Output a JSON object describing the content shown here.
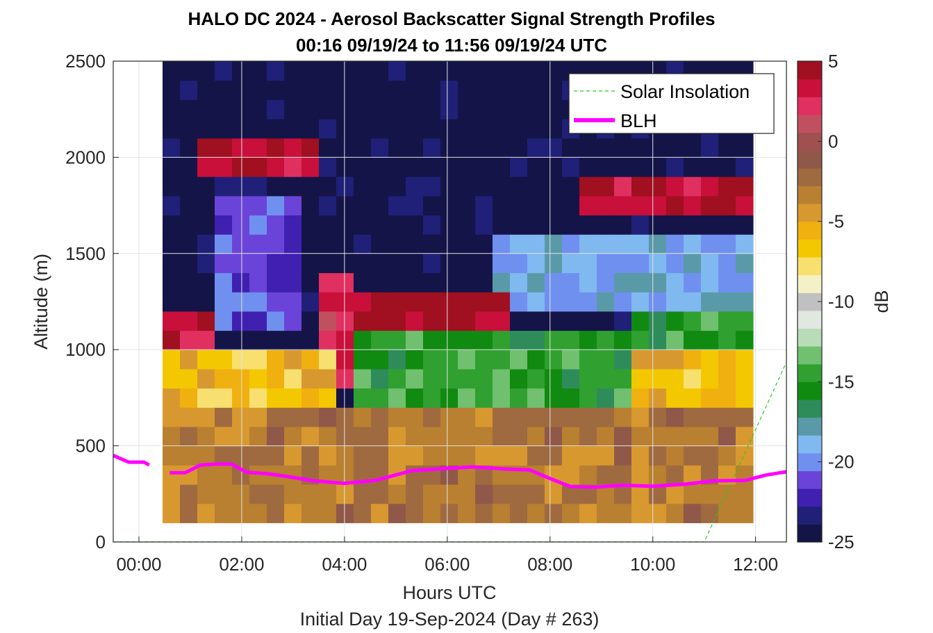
{
  "chart_data": {
    "type": "heatmap",
    "title": [
      "HALO DC 2024 - Aerosol Backscatter Signal Strength Profiles",
      "00:16 09/19/24 to 11:56 09/19/24  UTC"
    ],
    "xlabel": "Hours UTC",
    "xlabel2": "Initial Day 19-Sep-2024 (Day # 263)",
    "ylabel": "Altitude (m)",
    "xlim_hours": [
      -0.5,
      12.6
    ],
    "ylim": [
      0,
      2500
    ],
    "x_ticks": [
      {
        "value": 0,
        "label": "00:00"
      },
      {
        "value": 2,
        "label": "02:00"
      },
      {
        "value": 4,
        "label": "04:00"
      },
      {
        "value": 6,
        "label": "06:00"
      },
      {
        "value": 8,
        "label": "08:00"
      },
      {
        "value": 10,
        "label": "10:00"
      },
      {
        "value": 12,
        "label": "12:00"
      }
    ],
    "y_ticks": [
      {
        "value": 0,
        "label": "0"
      },
      {
        "value": 500,
        "label": "500"
      },
      {
        "value": 1000,
        "label": "1000"
      },
      {
        "value": 1500,
        "label": "1500"
      },
      {
        "value": 2000,
        "label": "2000"
      },
      {
        "value": 2500,
        "label": "2500"
      }
    ],
    "grid": true,
    "colorbar": {
      "label": "dB",
      "range": [
        -25,
        5
      ],
      "ticks": [
        {
          "value": 5,
          "label": "5"
        },
        {
          "value": 0,
          "label": "0"
        },
        {
          "value": -5,
          "label": "-5"
        },
        {
          "value": -10,
          "label": "-10"
        },
        {
          "value": -15,
          "label": "-15"
        },
        {
          "value": -20,
          "label": "-20"
        },
        {
          "value": -25,
          "label": "-25"
        }
      ],
      "colors": [
        "#141448",
        "#202078",
        "#4020b0",
        "#6a44d8",
        "#7090f0",
        "#80b8f0",
        "#5a9aa8",
        "#2e8c5a",
        "#108a10",
        "#30a030",
        "#70c070",
        "#b8dcb8",
        "#e0e8e0",
        "#c0c0c0",
        "#f4f0c8",
        "#f8e070",
        "#f4c800",
        "#f0b010",
        "#d89830",
        "#b88030",
        "#a06a40",
        "#905848",
        "#a05050",
        "#c05060",
        "#e03060",
        "#c8103a",
        "#a01020"
      ]
    },
    "legend": {
      "placement": "top-right",
      "entries": [
        {
          "name": "Solar Insolation",
          "color": "#22cc22",
          "style": "dashed"
        },
        {
          "name": "BLH",
          "color": "#ff00ff",
          "style": "solid"
        }
      ]
    },
    "heatmap_extent": {
      "x_start": 0.46,
      "x_end": 11.95,
      "y_start": 100,
      "y_end": 2500
    },
    "heatmap_columns": 34,
    "heatmap_rows": 24,
    "heatmap_regions": [
      {
        "x0": 0.46,
        "x1": 11.95,
        "y0": 100,
        "y1": 150,
        "db": -7
      },
      {
        "x0": 0.46,
        "x1": 11.95,
        "y0": 150,
        "y1": 700,
        "db": -3
      },
      {
        "x0": 0.46,
        "x1": 3.8,
        "y0": 700,
        "y1": 1050,
        "db": -6
      },
      {
        "x0": 0.46,
        "x1": 1.5,
        "y0": 850,
        "y1": 1250,
        "db": 3
      },
      {
        "x0": 3.4,
        "x1": 4.3,
        "y0": 800,
        "y1": 1450,
        "db": 3
      },
      {
        "x0": 4.3,
        "x1": 7.1,
        "y0": 1100,
        "y1": 1350,
        "db": 4
      },
      {
        "x0": 4.3,
        "x1": 9.5,
        "y0": 700,
        "y1": 1100,
        "db": -15
      },
      {
        "x0": 9.5,
        "x1": 11.95,
        "y0": 700,
        "y1": 1000,
        "db": -6
      },
      {
        "x0": 9.5,
        "x1": 11.95,
        "y0": 1000,
        "y1": 1250,
        "db": -15
      },
      {
        "x0": 6.9,
        "x1": 11.95,
        "y0": 1250,
        "y1": 1650,
        "db": -19
      },
      {
        "x0": 8.6,
        "x1": 11.95,
        "y0": 1700,
        "y1": 1950,
        "db": 4
      },
      {
        "x0": 1.5,
        "x1": 3.2,
        "y0": 1100,
        "y1": 1800,
        "db": -21
      },
      {
        "x0": 1.0,
        "x1": 3.4,
        "y0": 1950,
        "y1": 2150,
        "db": 4
      },
      {
        "x0": 0.46,
        "x1": 11.95,
        "y0": 1650,
        "y1": 2500,
        "db": -25
      }
    ],
    "blh_series": {
      "name": "BLH",
      "x": [
        -0.5,
        -0.2,
        0.1,
        0.2,
        0.6,
        0.9,
        1.2,
        1.5,
        1.8,
        2.1,
        2.5,
        2.9,
        3.4,
        4.0,
        4.6,
        5.3,
        6.0,
        6.5,
        7.1,
        7.6,
        8.0,
        8.4,
        8.9,
        9.4,
        10.0,
        10.6,
        11.2,
        11.8,
        12.2,
        12.6
      ],
      "y": [
        450,
        415,
        415,
        400,
        360,
        360,
        400,
        405,
        405,
        362,
        355,
        340,
        318,
        305,
        320,
        370,
        383,
        390,
        380,
        375,
        330,
        288,
        285,
        295,
        290,
        300,
        318,
        320,
        348,
        365
      ],
      "gap_after_x": 0.2
    },
    "solar_insolation_series": {
      "name": "Solar Insolation",
      "x": [
        -0.5,
        11.0,
        12.6
      ],
      "y": [
        0,
        0,
        935
      ]
    }
  }
}
